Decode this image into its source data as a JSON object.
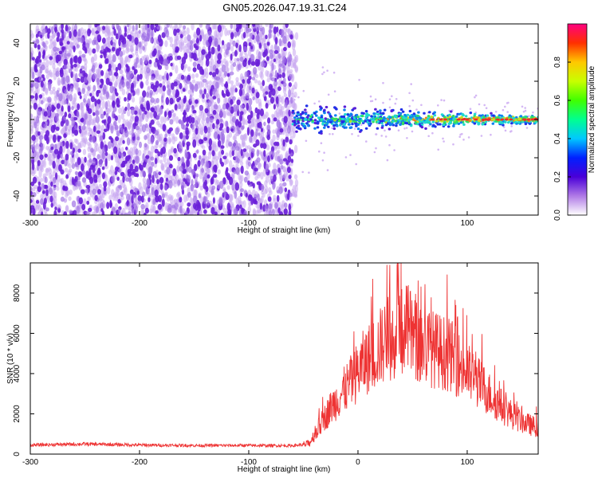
{
  "title": "GN05.2026.047.19.31.C24",
  "chart_data": [
    {
      "type": "heatmap",
      "xlabel": "Height of straight line (km)",
      "ylabel": "Frequency (Hz)",
      "xlim": [
        -300,
        165
      ],
      "ylim": [
        -50,
        50
      ],
      "xticks": [
        -300,
        -200,
        -100,
        0,
        100
      ],
      "yticks": [
        -40,
        -20,
        0,
        20,
        40
      ],
      "noise_region_x": [
        -300,
        -60
      ],
      "signal_line_frequency": 0,
      "colorbar": {
        "label": "Normalized spectral amplitude",
        "range": [
          0,
          1
        ],
        "ticks": [
          "0.0",
          "0.2",
          "0.4",
          "0.6",
          "0.8"
        ],
        "colormap": "rainbow (violet-blue-cyan-green-yellow-red)"
      },
      "colors": {
        "noise": "#7a2ad6",
        "low": "#2a1ad8",
        "mid": "#23e0d0",
        "high": "#e82a2a"
      }
    },
    {
      "type": "line",
      "xlabel": "Height of straight line (km)",
      "ylabel": "SNR (10 * v/v)",
      "xlim": [
        -300,
        165
      ],
      "ylim": [
        0,
        9500
      ],
      "xticks": [
        -300,
        -200,
        -100,
        0,
        100
      ],
      "yticks": [
        0,
        2000,
        4000,
        6000,
        8000
      ],
      "color": "#ee3333",
      "envelope": {
        "x": [
          -300,
          -250,
          -200,
          -150,
          -100,
          -60,
          -45,
          -35,
          -25,
          -15,
          -5,
          5,
          15,
          25,
          35,
          45,
          55,
          65,
          75,
          85,
          95,
          105,
          115,
          125,
          135,
          145,
          155,
          165
        ],
        "y": [
          450,
          500,
          450,
          430,
          430,
          420,
          500,
          1400,
          2300,
          3000,
          3700,
          4500,
          5000,
          5600,
          6000,
          6200,
          5500,
          5300,
          5100,
          4900,
          4300,
          3800,
          3300,
          2700,
          2200,
          1800,
          1500,
          1300
        ]
      }
    }
  ]
}
